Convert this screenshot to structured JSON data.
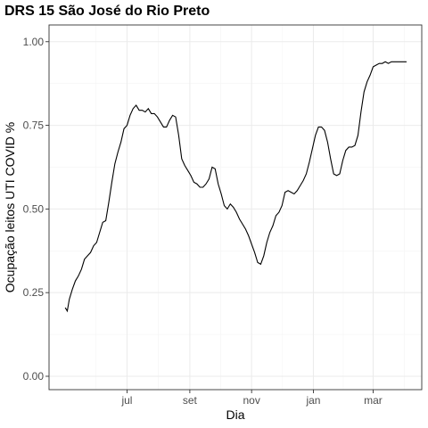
{
  "chart_data": {
    "type": "line",
    "title": "DRS 15 São José do Rio Preto",
    "xlabel": "Dia",
    "ylabel": "Ocupação leitos UTI COVID %",
    "x_tick_labels": [
      "jul",
      "set",
      "nov",
      "jan",
      "mar"
    ],
    "x_tick_dates": [
      "2020-07-01",
      "2020-09-01",
      "2020-11-01",
      "2021-01-01",
      "2021-03-01"
    ],
    "xlim": [
      "2020-04-15",
      "2021-04-18"
    ],
    "y_ticks": [
      0.0,
      0.25,
      0.5,
      0.75,
      1.0
    ],
    "y_tick_labels": [
      "0.00",
      "0.25",
      "0.50",
      "0.75",
      "1.00"
    ],
    "ylim": [
      -0.04,
      1.05
    ],
    "grid": true,
    "line_color": "#000000",
    "series": [
      {
        "x": [
          "2020-05-01",
          "2020-05-03",
          "2020-05-05",
          "2020-05-08",
          "2020-05-11",
          "2020-05-14",
          "2020-05-17",
          "2020-05-20",
          "2020-05-23",
          "2020-05-26",
          "2020-05-29",
          "2020-06-01",
          "2020-06-04",
          "2020-06-07",
          "2020-06-10",
          "2020-06-13",
          "2020-06-16",
          "2020-06-19",
          "2020-06-22",
          "2020-06-25",
          "2020-06-28",
          "2020-07-01",
          "2020-07-04",
          "2020-07-07",
          "2020-07-10",
          "2020-07-13",
          "2020-07-16",
          "2020-07-19",
          "2020-07-22",
          "2020-07-25",
          "2020-07-28",
          "2020-07-31",
          "2020-08-03",
          "2020-08-06",
          "2020-08-09",
          "2020-08-12",
          "2020-08-15",
          "2020-08-18",
          "2020-08-21",
          "2020-08-24",
          "2020-08-27",
          "2020-08-30",
          "2020-09-02",
          "2020-09-05",
          "2020-09-08",
          "2020-09-11",
          "2020-09-14",
          "2020-09-17",
          "2020-09-20",
          "2020-09-23",
          "2020-09-26",
          "2020-09-29",
          "2020-10-02",
          "2020-10-05",
          "2020-10-08",
          "2020-10-11",
          "2020-10-14",
          "2020-10-17",
          "2020-10-20",
          "2020-10-23",
          "2020-10-26",
          "2020-10-29",
          "2020-11-01",
          "2020-11-04",
          "2020-11-07",
          "2020-11-10",
          "2020-11-13",
          "2020-11-16",
          "2020-11-19",
          "2020-11-22",
          "2020-11-25",
          "2020-11-28",
          "2020-12-01",
          "2020-12-04",
          "2020-12-07",
          "2020-12-10",
          "2020-12-13",
          "2020-12-16",
          "2020-12-19",
          "2020-12-22",
          "2020-12-25",
          "2020-12-28",
          "2020-12-31",
          "2021-01-03",
          "2021-01-06",
          "2021-01-09",
          "2021-01-12",
          "2021-01-15",
          "2021-01-18",
          "2021-01-21",
          "2021-01-24",
          "2021-01-27",
          "2021-01-30",
          "2021-02-02",
          "2021-02-05",
          "2021-02-08",
          "2021-02-11",
          "2021-02-14",
          "2021-02-17",
          "2021-02-20",
          "2021-02-23",
          "2021-02-26",
          "2021-03-01",
          "2021-03-04",
          "2021-03-07",
          "2021-03-10",
          "2021-03-13",
          "2021-03-16",
          "2021-03-19",
          "2021-03-22",
          "2021-03-25",
          "2021-03-28",
          "2021-03-31",
          "2021-04-03"
        ],
        "y": [
          0.205,
          0.195,
          0.23,
          0.26,
          0.285,
          0.3,
          0.32,
          0.35,
          0.36,
          0.37,
          0.39,
          0.4,
          0.43,
          0.46,
          0.465,
          0.52,
          0.58,
          0.635,
          0.67,
          0.7,
          0.74,
          0.75,
          0.78,
          0.8,
          0.81,
          0.795,
          0.795,
          0.79,
          0.8,
          0.785,
          0.785,
          0.775,
          0.76,
          0.745,
          0.745,
          0.765,
          0.78,
          0.775,
          0.72,
          0.65,
          0.63,
          0.615,
          0.6,
          0.58,
          0.575,
          0.565,
          0.565,
          0.575,
          0.59,
          0.625,
          0.62,
          0.575,
          0.545,
          0.51,
          0.5,
          0.515,
          0.505,
          0.49,
          0.47,
          0.455,
          0.44,
          0.42,
          0.395,
          0.37,
          0.34,
          0.335,
          0.36,
          0.4,
          0.43,
          0.45,
          0.48,
          0.49,
          0.51,
          0.55,
          0.555,
          0.55,
          0.545,
          0.555,
          0.57,
          0.585,
          0.605,
          0.64,
          0.68,
          0.72,
          0.745,
          0.745,
          0.735,
          0.7,
          0.65,
          0.605,
          0.6,
          0.605,
          0.645,
          0.675,
          0.685,
          0.685,
          0.69,
          0.72,
          0.79,
          0.85,
          0.88,
          0.9,
          0.925,
          0.93,
          0.935,
          0.935,
          0.94,
          0.935,
          0.94,
          0.94,
          0.94,
          0.94,
          0.94,
          0.94
        ]
      }
    ]
  }
}
